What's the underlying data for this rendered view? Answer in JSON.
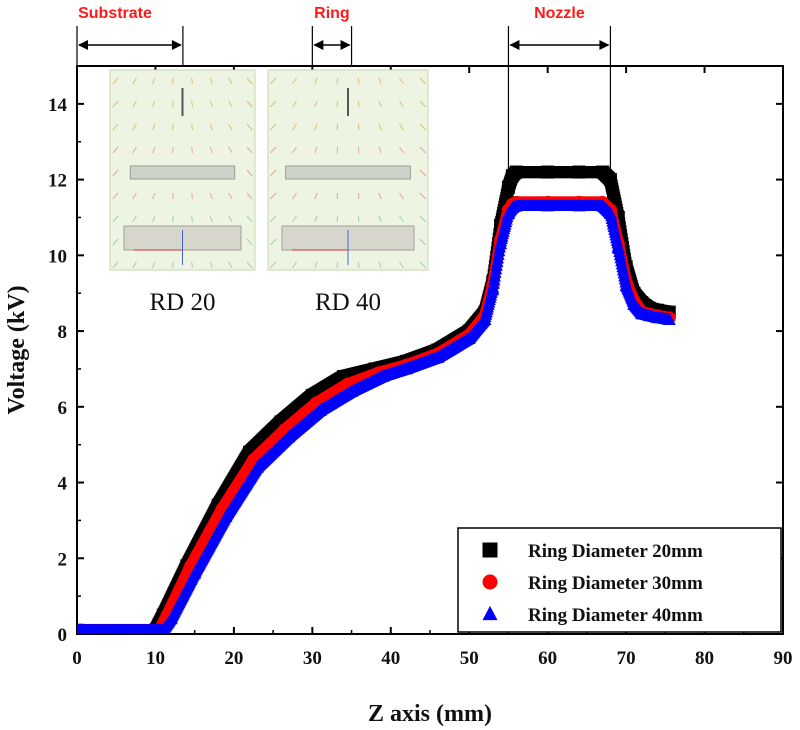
{
  "chart_data": {
    "type": "scatter",
    "xlabel": "Z axis (mm)",
    "ylabel": "Voltage (kV)",
    "xlim": [
      0,
      90
    ],
    "ylim": [
      0,
      15
    ],
    "xticks": [
      0,
      10,
      20,
      30,
      40,
      50,
      60,
      70,
      80,
      90
    ],
    "yticks": [
      0,
      2,
      4,
      6,
      8,
      10,
      12,
      14
    ],
    "legend_position": "bottom-right",
    "series": [
      {
        "name": "Ring Diameter 20mm",
        "marker": "square",
        "color": "#000000",
        "x": [
          0,
          10,
          11,
          14,
          18,
          22,
          26,
          30,
          34,
          38,
          42,
          46,
          50,
          52,
          53,
          54,
          55,
          55.5,
          56,
          60,
          64,
          67,
          68,
          69,
          70,
          71,
          72,
          73,
          74,
          75.5
        ],
        "y": [
          0.1,
          0.1,
          0.5,
          1.8,
          3.4,
          4.8,
          5.6,
          6.3,
          6.8,
          7.0,
          7.2,
          7.5,
          8.0,
          8.5,
          9.3,
          10.8,
          11.8,
          12.1,
          12.2,
          12.2,
          12.2,
          12.2,
          12.0,
          11.0,
          9.7,
          9.0,
          8.75,
          8.6,
          8.55,
          8.5
        ]
      },
      {
        "name": "Ring Diameter 30mm",
        "marker": "circle",
        "color": "#ff0000",
        "x": [
          0,
          10.5,
          11.5,
          14.5,
          18.5,
          22.5,
          26.5,
          30.5,
          34.5,
          38.5,
          42,
          46,
          50,
          52,
          53,
          54,
          55,
          55.5,
          56,
          60,
          64,
          67,
          68,
          69,
          70,
          71,
          72,
          73,
          74,
          75.5
        ],
        "y": [
          0.1,
          0.1,
          0.5,
          1.8,
          3.3,
          4.6,
          5.4,
          6.1,
          6.6,
          6.9,
          7.1,
          7.4,
          7.9,
          8.4,
          9.2,
          10.4,
          11.2,
          11.35,
          11.4,
          11.4,
          11.4,
          11.4,
          11.2,
          10.3,
          9.3,
          8.8,
          8.5,
          8.45,
          8.4,
          8.35
        ]
      },
      {
        "name": "Ring Diameter 40mm",
        "marker": "triangle",
        "color": "#0000ff",
        "x": [
          0,
          11,
          12,
          15,
          19,
          23,
          27,
          31,
          35,
          39,
          42,
          46,
          50,
          52,
          53,
          54,
          55,
          55.5,
          56,
          60,
          64,
          67,
          68,
          69,
          70,
          71,
          72,
          73,
          74,
          75.5
        ],
        "y": [
          0.1,
          0.1,
          0.4,
          1.6,
          3.1,
          4.4,
          5.2,
          5.9,
          6.4,
          6.8,
          7.0,
          7.3,
          7.8,
          8.3,
          9.1,
          10.3,
          11.1,
          11.25,
          11.3,
          11.3,
          11.3,
          11.3,
          11.1,
          10.2,
          9.2,
          8.7,
          8.45,
          8.4,
          8.35,
          8.3
        ]
      }
    ],
    "annotations": [
      {
        "label": "Substrate",
        "x_start": 0,
        "x_end": 13.5
      },
      {
        "label": "Ring",
        "x_start": 30,
        "x_end": 35
      },
      {
        "label": "Nozzle",
        "x_start": 55,
        "x_end": 68
      }
    ],
    "insets": [
      {
        "caption": "RD 20"
      },
      {
        "caption": "RD 40"
      }
    ]
  }
}
